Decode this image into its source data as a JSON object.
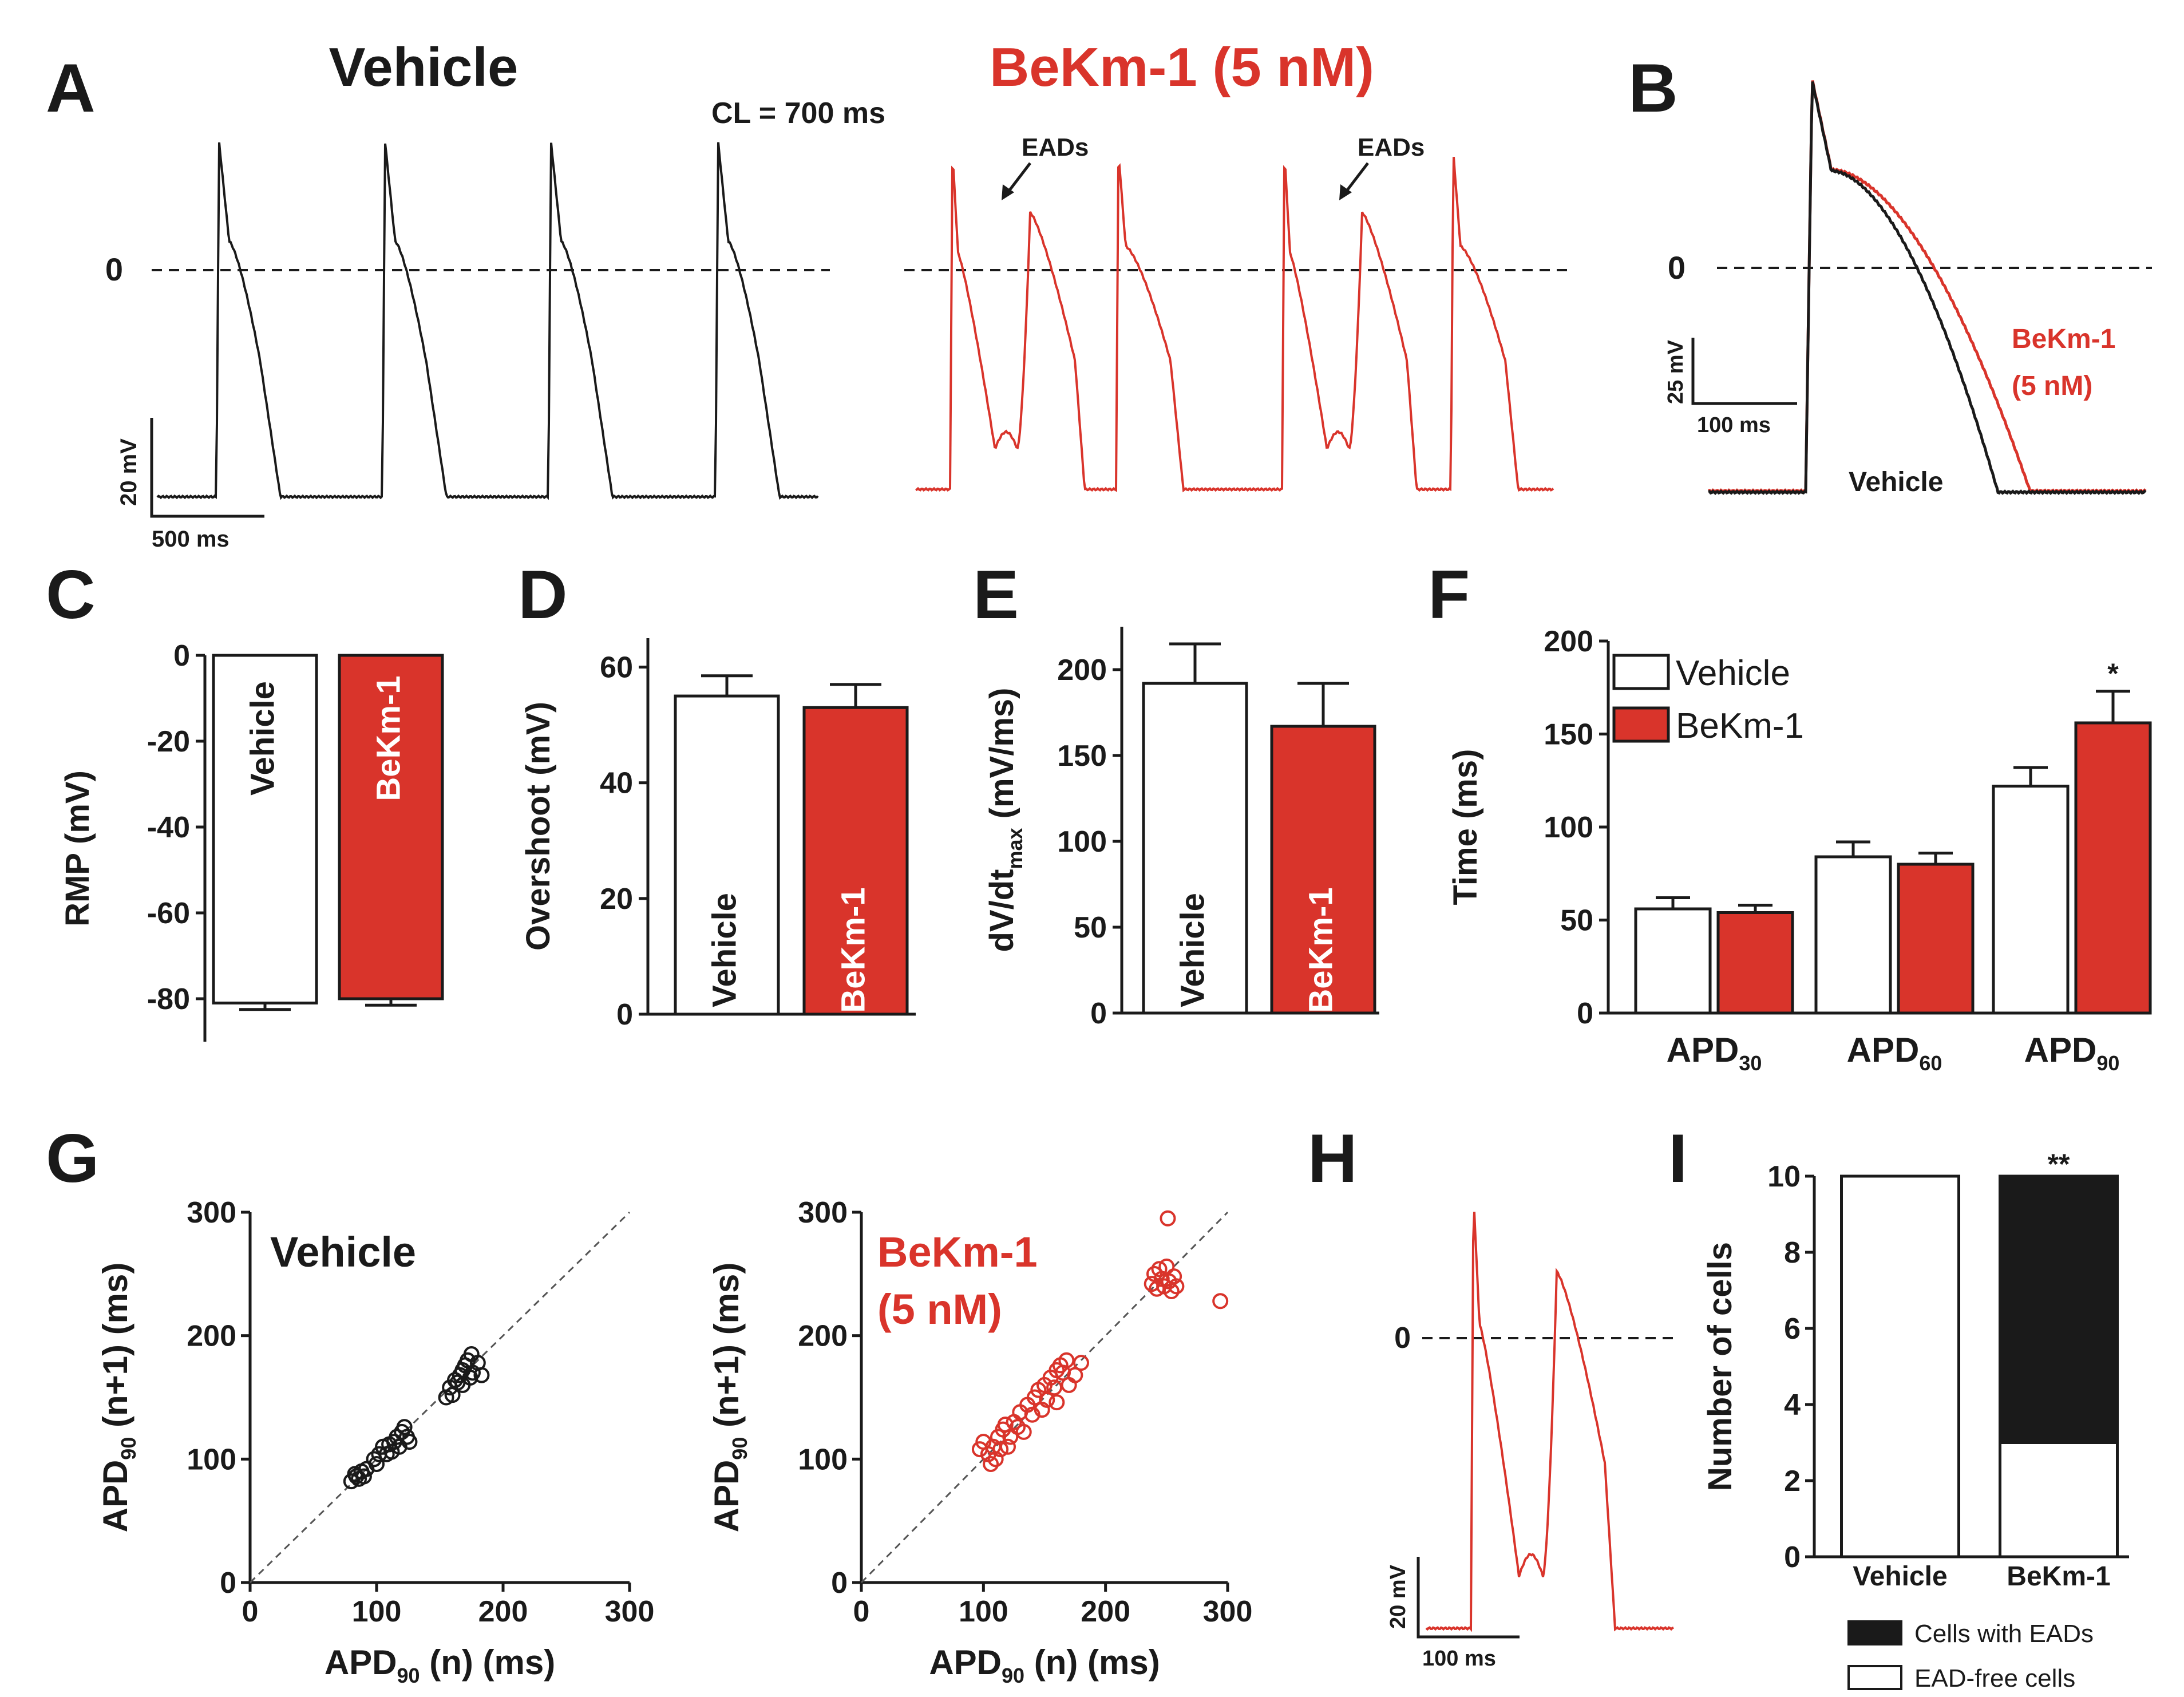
{
  "colors": {
    "vehicle": "#1a1a1a",
    "bekm": "#d9342b",
    "bar_bekm": "#d9342b",
    "bar_vehicle": "#ffffff",
    "stack_eads": "#1a1a1a"
  },
  "panel_labels": {
    "A": "A",
    "B": "B",
    "C": "C",
    "D": "D",
    "E": "E",
    "F": "F",
    "G": "G",
    "H": "H",
    "I": "I"
  },
  "panel_a": {
    "title_vehicle": "Vehicle",
    "title_bekm": "BeKm-1 (5 nM)",
    "cycle_length": "CL = 700 ms",
    "eads_1": "EADs",
    "eads_2": "EADs",
    "zero": "0",
    "scale_mv": "20 mV",
    "scale_ms": "500 ms"
  },
  "panel_b": {
    "zero": "0",
    "scale_mv": "25 mV",
    "scale_ms": "100 ms",
    "label_bekm_1": "BeKm-1",
    "label_bekm_2": "(5 nM)",
    "label_vehicle": "Vehicle"
  },
  "panel_h": {
    "zero": "0",
    "scale_mv": "20 mV",
    "scale_ms": "100 ms"
  },
  "chart_data": [
    {
      "id": "C",
      "type": "bar",
      "ylabel": "RMP (mV)",
      "ylim": [
        -90,
        0
      ],
      "yticks": [
        "0",
        "-20",
        "-40",
        "-60",
        "-80"
      ],
      "categories": [
        "Vehicle",
        "BeKm-1"
      ],
      "values": [
        -81,
        -80
      ],
      "errors": [
        1.5,
        1.5
      ]
    },
    {
      "id": "D",
      "type": "bar",
      "ylabel": "Overshoot (mV)",
      "ylim": [
        0,
        65
      ],
      "yticks": [
        "0",
        "20",
        "40",
        "60"
      ],
      "categories": [
        "Vehicle",
        "BeKm-1"
      ],
      "values": [
        55,
        53
      ],
      "errors": [
        3.5,
        4
      ]
    },
    {
      "id": "E",
      "type": "bar",
      "ylabel": "dV/dt",
      "ylabel_sub": "max",
      "ylabel_unit": " (mV/ms)",
      "ylim": [
        0,
        225
      ],
      "yticks": [
        "0",
        "50",
        "100",
        "150",
        "200"
      ],
      "categories": [
        "Vehicle",
        "BeKm-1"
      ],
      "values": [
        192,
        167
      ],
      "errors": [
        23,
        25
      ]
    },
    {
      "id": "F",
      "type": "bar",
      "ylabel": "Time (ms)",
      "ylim": [
        0,
        200
      ],
      "yticks": [
        "0",
        "50",
        "100",
        "150",
        "200"
      ],
      "categories": [
        {
          "base": "APD",
          "sub": "30"
        },
        {
          "base": "APD",
          "sub": "60"
        },
        {
          "base": "APD",
          "sub": "90"
        }
      ],
      "series": [
        {
          "name": "Vehicle",
          "values": [
            56,
            84,
            122
          ],
          "errors": [
            6,
            8,
            10
          ]
        },
        {
          "name": "BeKm-1",
          "values": [
            54,
            80,
            156
          ],
          "errors": [
            4,
            6,
            17
          ]
        }
      ],
      "annotations": [
        {
          "category": 2,
          "series": 1,
          "text": "*"
        }
      ]
    },
    {
      "id": "G-vehicle",
      "type": "scatter",
      "title": "Vehicle",
      "xlabel": {
        "base": "APD",
        "sub": "90",
        "unit": " (n) (ms)"
      },
      "ylabel": {
        "base": "APD",
        "sub": "90",
        "unit": " (n+1) (ms)"
      },
      "xlim": [
        0,
        300
      ],
      "ylim": [
        0,
        300
      ],
      "xticks": [
        "0",
        "100",
        "200",
        "300"
      ],
      "yticks": [
        "0",
        "100",
        "200",
        "300"
      ],
      "points": [
        [
          80,
          82
        ],
        [
          84,
          86
        ],
        [
          86,
          84
        ],
        [
          88,
          90
        ],
        [
          90,
          86
        ],
        [
          83,
          88
        ],
        [
          92,
          92
        ],
        [
          98,
          100
        ],
        [
          102,
          104
        ],
        [
          105,
          110
        ],
        [
          108,
          104
        ],
        [
          110,
          112
        ],
        [
          114,
          114
        ],
        [
          116,
          118
        ],
        [
          118,
          110
        ],
        [
          120,
          122
        ],
        [
          122,
          126
        ],
        [
          124,
          118
        ],
        [
          126,
          114
        ],
        [
          112,
          106
        ],
        [
          100,
          96
        ],
        [
          155,
          150
        ],
        [
          158,
          158
        ],
        [
          160,
          152
        ],
        [
          164,
          162
        ],
        [
          166,
          168
        ],
        [
          168,
          172
        ],
        [
          170,
          176
        ],
        [
          172,
          180
        ],
        [
          175,
          185
        ],
        [
          176,
          170
        ],
        [
          180,
          178
        ],
        [
          183,
          168
        ],
        [
          162,
          164
        ],
        [
          168,
          160
        ],
        [
          174,
          166
        ]
      ]
    },
    {
      "id": "G-bekm",
      "type": "scatter",
      "title_line1": "BeKm-1",
      "title_line2": "(5 nM)",
      "xlabel": {
        "base": "APD",
        "sub": "90",
        "unit": " (n) (ms)"
      },
      "ylabel": {
        "base": "APD",
        "sub": "90",
        "unit": " (n+1) (ms)"
      },
      "xlim": [
        0,
        300
      ],
      "ylim": [
        0,
        300
      ],
      "xticks": [
        "0",
        "100",
        "200",
        "300"
      ],
      "yticks": [
        "0",
        "100",
        "200",
        "300"
      ],
      "points": [
        [
          97,
          108
        ],
        [
          100,
          114
        ],
        [
          104,
          104
        ],
        [
          106,
          96
        ],
        [
          108,
          110
        ],
        [
          110,
          100
        ],
        [
          112,
          118
        ],
        [
          114,
          108
        ],
        [
          116,
          124
        ],
        [
          118,
          128
        ],
        [
          120,
          110
        ],
        [
          122,
          118
        ],
        [
          125,
          130
        ],
        [
          128,
          126
        ],
        [
          130,
          138
        ],
        [
          133,
          122
        ],
        [
          136,
          144
        ],
        [
          140,
          136
        ],
        [
          142,
          150
        ],
        [
          145,
          156
        ],
        [
          148,
          140
        ],
        [
          150,
          160
        ],
        [
          152,
          148
        ],
        [
          155,
          166
        ],
        [
          158,
          158
        ],
        [
          160,
          172
        ],
        [
          163,
          176
        ],
        [
          165,
          170
        ],
        [
          168,
          180
        ],
        [
          170,
          160
        ],
        [
          175,
          168
        ],
        [
          180,
          178
        ],
        [
          160,
          146
        ],
        [
          238,
          242
        ],
        [
          240,
          250
        ],
        [
          242,
          238
        ],
        [
          244,
          254
        ],
        [
          246,
          246
        ],
        [
          248,
          240
        ],
        [
          250,
          256
        ],
        [
          252,
          244
        ],
        [
          254,
          236
        ],
        [
          256,
          248
        ],
        [
          258,
          240
        ],
        [
          251,
          295
        ],
        [
          294,
          228
        ]
      ]
    },
    {
      "id": "I",
      "type": "bar",
      "ylabel": "Number of cells",
      "ylim": [
        0,
        10
      ],
      "yticks": [
        "0",
        "2",
        "4",
        "6",
        "8",
        "10"
      ],
      "categories": [
        "Vehicle",
        "BeKm-1"
      ],
      "series": [
        {
          "name": "EAD-free cells",
          "values": [
            10,
            3
          ]
        },
        {
          "name": "Cells with EADs",
          "values": [
            0,
            7
          ]
        }
      ],
      "annotations": [
        {
          "category": 1,
          "text": "**"
        }
      ]
    }
  ]
}
